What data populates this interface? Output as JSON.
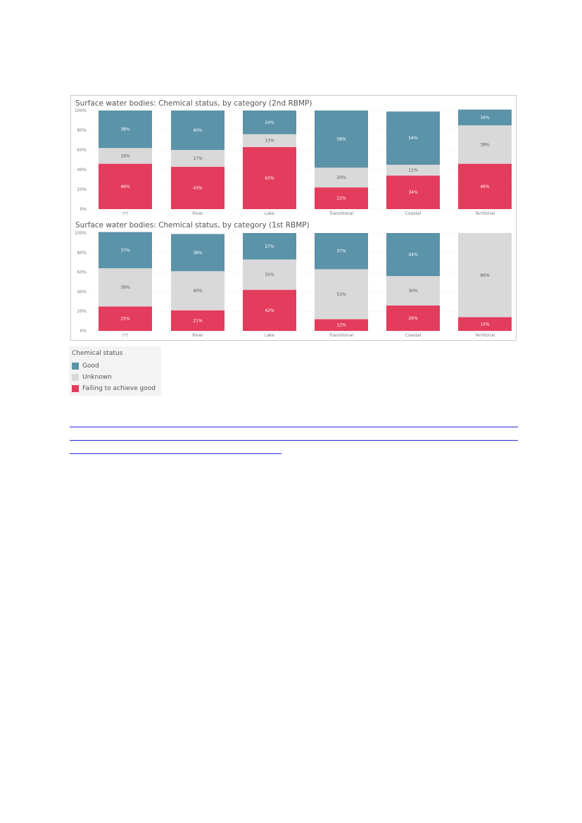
{
  "chart_data": [
    {
      "type": "bar",
      "stacked": true,
      "title": "Surface water bodies: Chemical status, by category (2nd RBMP)",
      "categories": [
        "(*)",
        "River",
        "Lake",
        "Transitional",
        "Coastal",
        "Territorial"
      ],
      "yticks": [
        "100%",
        "80%",
        "60%",
        "40%",
        "20%",
        "0%"
      ],
      "ylim": [
        0,
        100
      ],
      "series": [
        {
          "name": "Failing to achieve good",
          "values": [
            46,
            43,
            63,
            22,
            34,
            46
          ],
          "labels": [
            "46%",
            "43%",
            "63%",
            "22%",
            "34%",
            "46%"
          ]
        },
        {
          "name": "Unknown",
          "values": [
            16,
            17,
            13,
            20,
            11,
            39
          ],
          "labels": [
            "16%",
            "17%",
            "13%",
            "20%",
            "11%",
            "39%"
          ]
        },
        {
          "name": "Good",
          "values": [
            38,
            40,
            24,
            58,
            54,
            16
          ],
          "labels": [
            "38%",
            "40%",
            "24%",
            "58%",
            "54%",
            "16%"
          ]
        }
      ]
    },
    {
      "type": "bar",
      "stacked": true,
      "title": "Surface water bodies: Chemical status, by category (1st RBMP)",
      "categories": [
        "(*)",
        "River",
        "Lake",
        "Transitional",
        "Coastal",
        "Territorial"
      ],
      "yticks": [
        "100%",
        "80%",
        "60%",
        "40%",
        "20%",
        "0%"
      ],
      "ylim": [
        0,
        100
      ],
      "series": [
        {
          "name": "Failing to achieve good",
          "values": [
            25,
            21,
            42,
            12,
            26,
            14
          ],
          "labels": [
            "25%",
            "21%",
            "42%",
            "12%",
            "26%",
            "14%"
          ]
        },
        {
          "name": "Unknown",
          "values": [
            39,
            40,
            31,
            51,
            30,
            86
          ],
          "labels": [
            "39%",
            "40%",
            "31%",
            "51%",
            "30%",
            "86%"
          ]
        },
        {
          "name": "Good",
          "values": [
            37,
            38,
            27,
            37,
            44,
            0
          ],
          "labels": [
            "37%",
            "38%",
            "27%",
            "37%",
            "44%",
            ""
          ]
        }
      ]
    }
  ],
  "legend": {
    "title": "Chemical status",
    "items": [
      {
        "label": "Good",
        "color": "#5b93a9"
      },
      {
        "label": "Unknown",
        "color": "#d9d9d9"
      },
      {
        "label": "Failing to achieve good",
        "color": "#e43c5c"
      }
    ]
  },
  "colors": {
    "Good": "#5b93a9",
    "Unknown": "#d9d9d9",
    "Failing to achieve good": "#e43c5c"
  }
}
